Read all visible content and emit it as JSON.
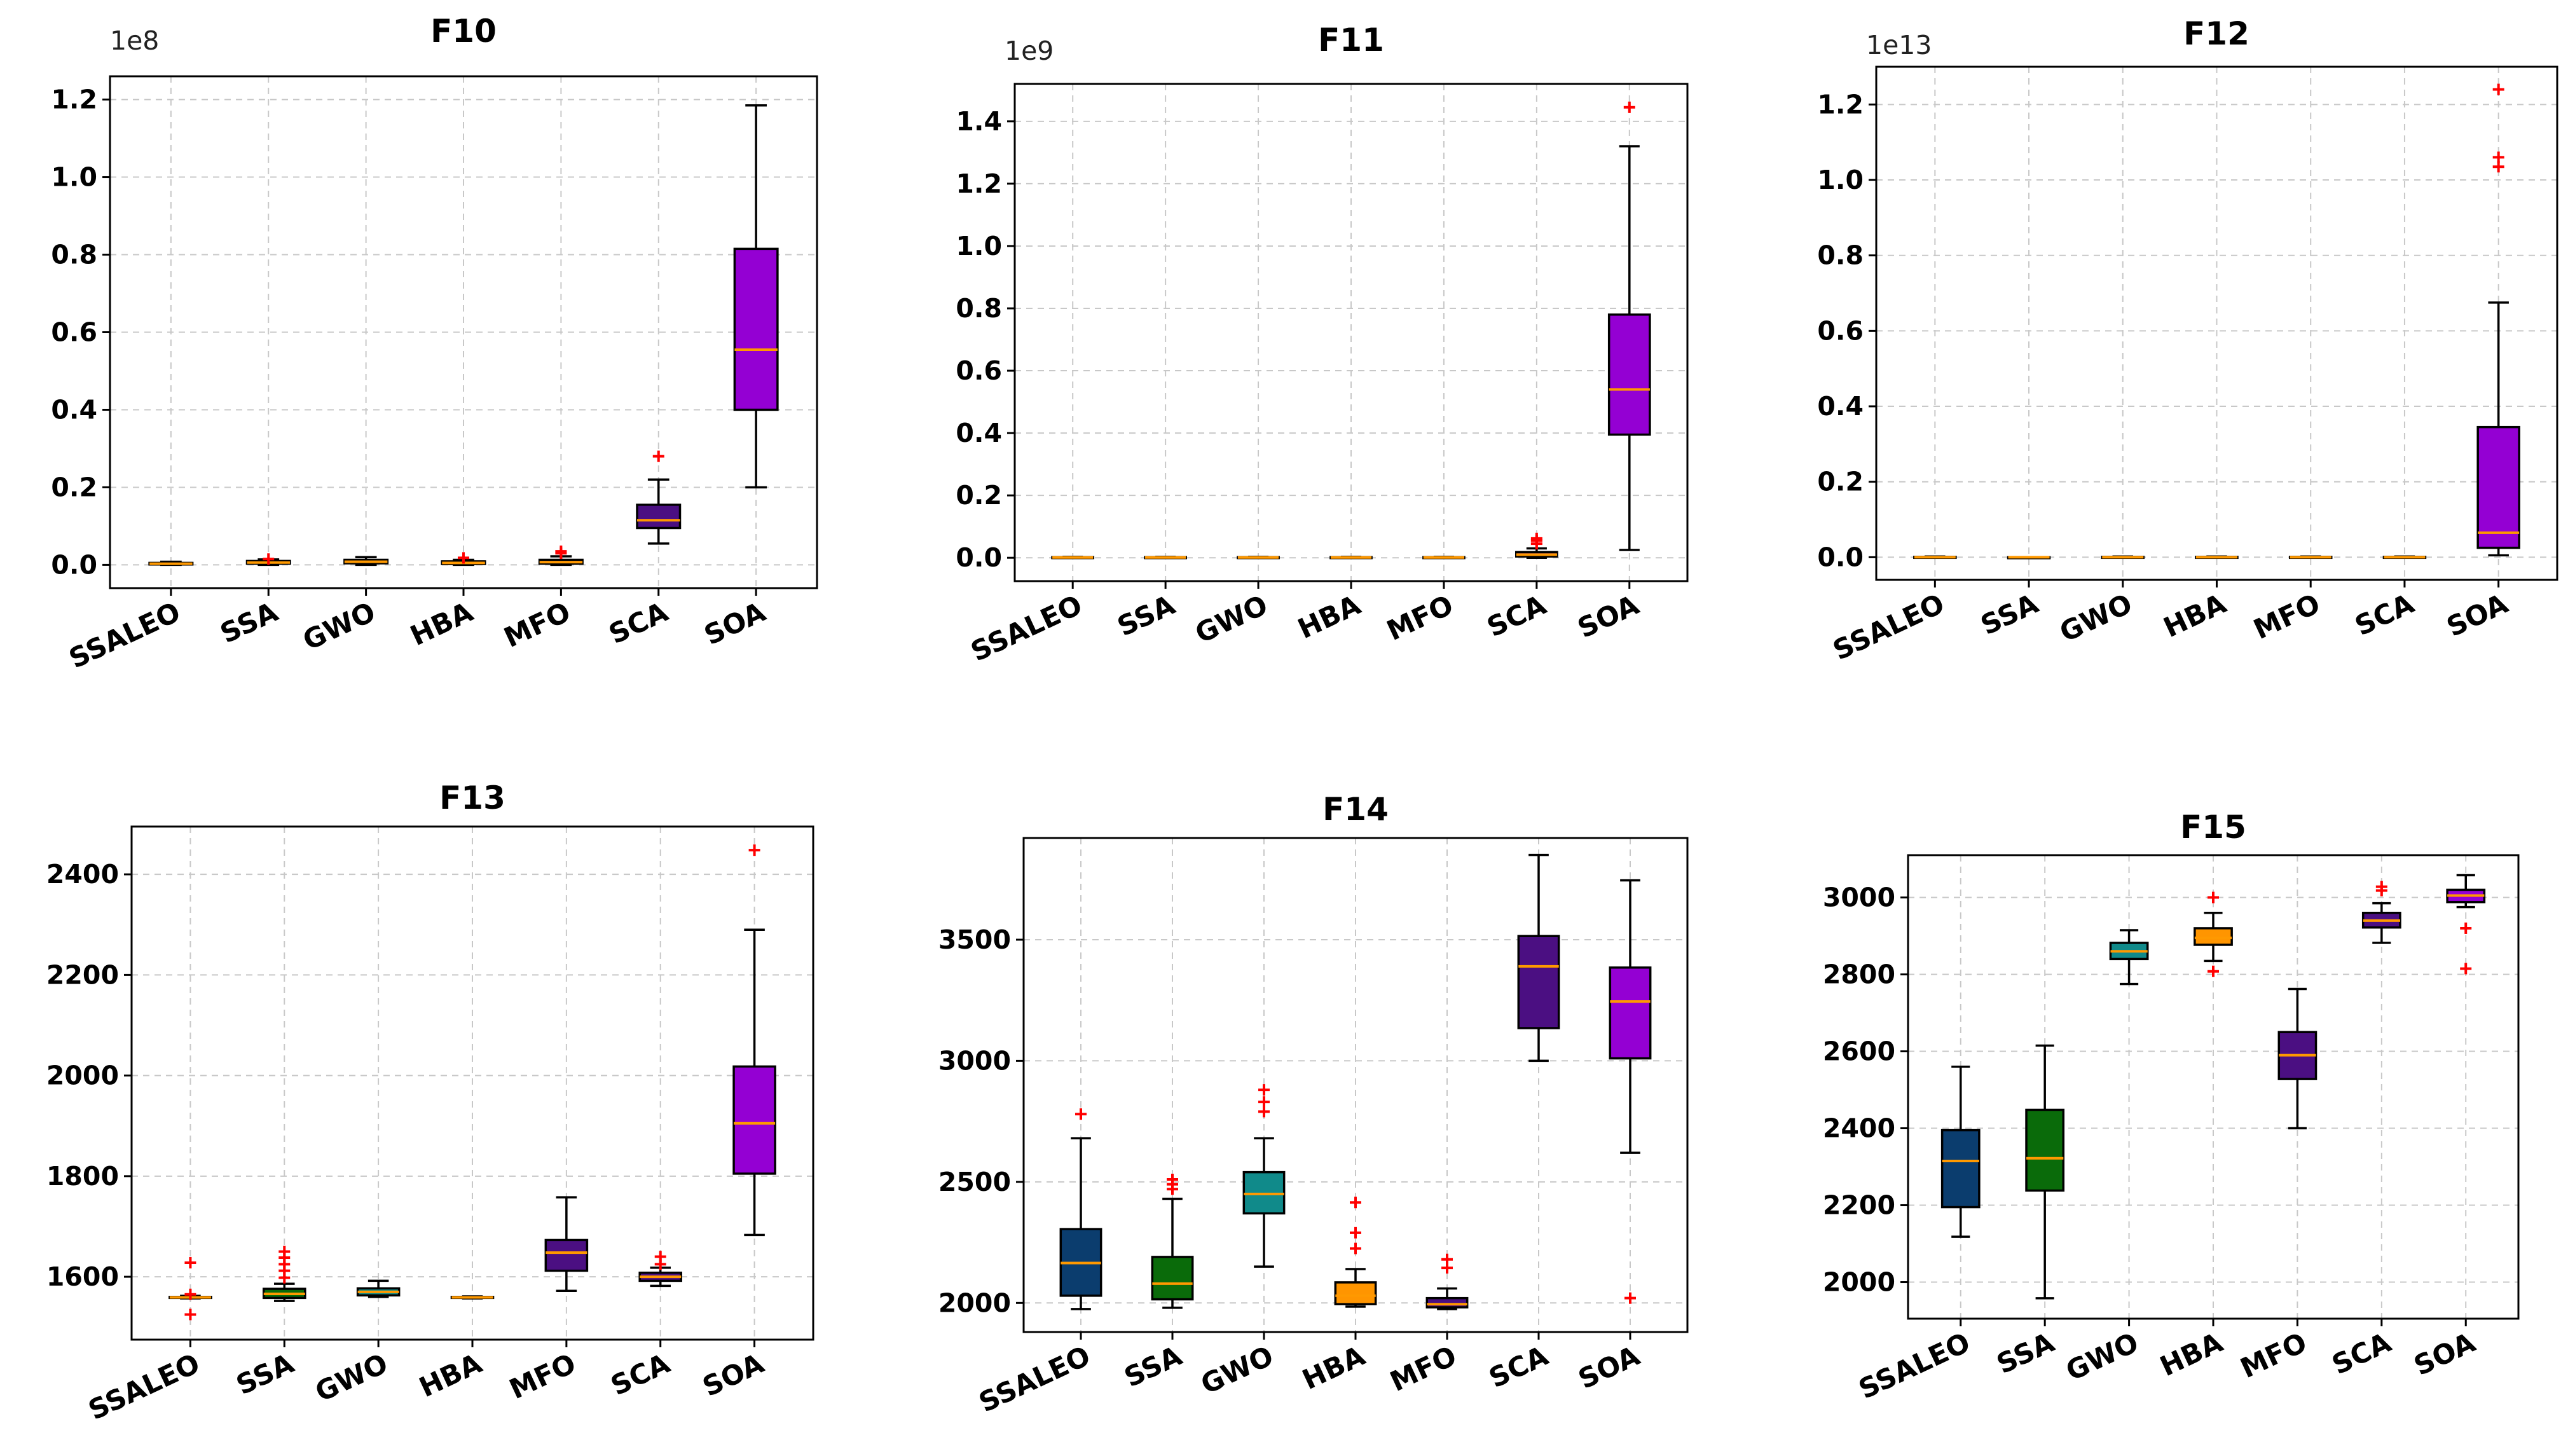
{
  "colors": {
    "SSALEO": "#0b3d6e",
    "SSA": "#0a6b0a",
    "GWO": "#108a8a",
    "HBA": "#ff9500",
    "MFO": "#4b0f82",
    "SCA": "#4b0f82",
    "SOA": "#9400d3",
    "median": "#ff9900",
    "flier": "#ff0000"
  },
  "chart_data": [
    {
      "type": "box",
      "title": "F10",
      "offset_label": "1e8",
      "categories": [
        "SSALEO",
        "SSA",
        "GWO",
        "HBA",
        "MFO",
        "SCA",
        "SOA"
      ],
      "ylim": [
        -0.06,
        1.26
      ],
      "yticks": [
        0.0,
        0.2,
        0.4,
        0.6,
        0.8,
        1.0,
        1.2
      ],
      "ytick_labels": [
        "0.0",
        "0.2",
        "0.4",
        "0.6",
        "0.8",
        "1.0",
        "1.2"
      ],
      "series": [
        {
          "name": "SSALEO",
          "min": 0.0,
          "q1": 0.001,
          "median": 0.003,
          "q3": 0.005,
          "max": 0.008,
          "outliers": []
        },
        {
          "name": "SSA",
          "min": 0.0,
          "q1": 0.003,
          "median": 0.006,
          "q3": 0.01,
          "max": 0.014,
          "outliers": [
            0.015
          ]
        },
        {
          "name": "GWO",
          "min": 0.0,
          "q1": 0.004,
          "median": 0.008,
          "q3": 0.013,
          "max": 0.02,
          "outliers": []
        },
        {
          "name": "HBA",
          "min": 0.0,
          "q1": 0.002,
          "median": 0.005,
          "q3": 0.009,
          "max": 0.013,
          "outliers": [
            0.018
          ]
        },
        {
          "name": "MFO",
          "min": 0.0,
          "q1": 0.003,
          "median": 0.007,
          "q3": 0.013,
          "max": 0.022,
          "outliers": [
            0.03,
            0.035
          ]
        },
        {
          "name": "SCA",
          "min": 0.055,
          "q1": 0.095,
          "median": 0.115,
          "q3": 0.155,
          "max": 0.22,
          "outliers": [
            0.28
          ]
        },
        {
          "name": "SOA",
          "min": 0.2,
          "q1": 0.4,
          "median": 0.555,
          "q3": 0.815,
          "max": 1.185,
          "outliers": []
        }
      ]
    },
    {
      "type": "box",
      "title": "F11",
      "offset_label": "1e9",
      "categories": [
        "SSALEO",
        "SSA",
        "GWO",
        "HBA",
        "MFO",
        "SCA",
        "SOA"
      ],
      "ylim": [
        -0.075,
        1.52
      ],
      "yticks": [
        0.0,
        0.2,
        0.4,
        0.6,
        0.8,
        1.0,
        1.2,
        1.4
      ],
      "ytick_labels": [
        "0.0",
        "0.2",
        "0.4",
        "0.6",
        "0.8",
        "1.0",
        "1.2",
        "1.4"
      ],
      "series": [
        {
          "name": "SSALEO",
          "min": 0.0,
          "q1": 0.0,
          "median": 0.001,
          "q3": 0.002,
          "max": 0.003,
          "outliers": []
        },
        {
          "name": "SSA",
          "min": 0.0,
          "q1": 0.0,
          "median": 0.001,
          "q3": 0.002,
          "max": 0.003,
          "outliers": []
        },
        {
          "name": "GWO",
          "min": 0.0,
          "q1": 0.0,
          "median": 0.001,
          "q3": 0.002,
          "max": 0.003,
          "outliers": []
        },
        {
          "name": "HBA",
          "min": 0.0,
          "q1": 0.0,
          "median": 0.001,
          "q3": 0.002,
          "max": 0.003,
          "outliers": []
        },
        {
          "name": "MFO",
          "min": 0.0,
          "q1": 0.0,
          "median": 0.001,
          "q3": 0.002,
          "max": 0.003,
          "outliers": []
        },
        {
          "name": "SCA",
          "min": 0.0,
          "q1": 0.004,
          "median": 0.01,
          "q3": 0.018,
          "max": 0.03,
          "outliers": [
            0.045,
            0.055,
            0.062
          ]
        },
        {
          "name": "SOA",
          "min": 0.025,
          "q1": 0.395,
          "median": 0.54,
          "q3": 0.78,
          "max": 1.32,
          "outliers": [
            1.445
          ]
        }
      ]
    },
    {
      "type": "box",
      "title": "F12",
      "offset_label": "1e13",
      "categories": [
        "SSALEO",
        "SSA",
        "GWO",
        "HBA",
        "MFO",
        "SCA",
        "SOA"
      ],
      "ylim": [
        -0.06,
        1.3
      ],
      "yticks": [
        0.0,
        0.2,
        0.4,
        0.6,
        0.8,
        1.0,
        1.2
      ],
      "ytick_labels": [
        "0.0",
        "0.2",
        "0.4",
        "0.6",
        "0.8",
        "1.0",
        "1.2"
      ],
      "series": [
        {
          "name": "SSALEO",
          "min": 0.0,
          "q1": 0.0,
          "median": 0.0,
          "q3": 0.001,
          "max": 0.002,
          "outliers": []
        },
        {
          "name": "SSA",
          "min": 0.0,
          "q1": 0.0,
          "median": 0.0,
          "q3": 0.0,
          "max": 0.0,
          "outliers": []
        },
        {
          "name": "GWO",
          "min": 0.0,
          "q1": 0.0,
          "median": 0.0,
          "q3": 0.001,
          "max": 0.002,
          "outliers": []
        },
        {
          "name": "HBA",
          "min": 0.0,
          "q1": 0.0,
          "median": 0.0,
          "q3": 0.001,
          "max": 0.002,
          "outliers": []
        },
        {
          "name": "MFO",
          "min": 0.0,
          "q1": 0.0,
          "median": 0.0,
          "q3": 0.001,
          "max": 0.002,
          "outliers": []
        },
        {
          "name": "SCA",
          "min": 0.0,
          "q1": 0.0,
          "median": 0.0,
          "q3": 0.001,
          "max": 0.002,
          "outliers": []
        },
        {
          "name": "SOA",
          "min": 0.005,
          "q1": 0.025,
          "median": 0.065,
          "q3": 0.345,
          "max": 0.675,
          "outliers": [
            1.035,
            1.06,
            1.24
          ]
        }
      ]
    },
    {
      "type": "box",
      "title": "F13",
      "offset_label": "",
      "categories": [
        "SSALEO",
        "SSA",
        "GWO",
        "HBA",
        "MFO",
        "SCA",
        "SOA"
      ],
      "ylim": [
        1475,
        2495
      ],
      "yticks": [
        1600,
        1800,
        2000,
        2200,
        2400
      ],
      "ytick_labels": [
        "1600",
        "1800",
        "2000",
        "2200",
        "2400"
      ],
      "series": [
        {
          "name": "SSALEO",
          "min": 1557,
          "q1": 1558,
          "median": 1559,
          "q3": 1560,
          "max": 1562,
          "outliers": [
            1525,
            1565,
            1628
          ]
        },
        {
          "name": "SSA",
          "min": 1552,
          "q1": 1558,
          "median": 1566,
          "q3": 1576,
          "max": 1586,
          "outliers": [
            1598,
            1612,
            1625,
            1638,
            1650
          ]
        },
        {
          "name": "GWO",
          "min": 1560,
          "q1": 1563,
          "median": 1570,
          "q3": 1577,
          "max": 1592,
          "outliers": []
        },
        {
          "name": "HBA",
          "min": 1557,
          "q1": 1558,
          "median": 1559,
          "q3": 1560,
          "max": 1561,
          "outliers": []
        },
        {
          "name": "MFO",
          "min": 1572,
          "q1": 1612,
          "median": 1648,
          "q3": 1673,
          "max": 1758,
          "outliers": []
        },
        {
          "name": "SCA",
          "min": 1582,
          "q1": 1592,
          "median": 1600,
          "q3": 1608,
          "max": 1618,
          "outliers": [
            1625,
            1640
          ]
        },
        {
          "name": "SOA",
          "min": 1683,
          "q1": 1805,
          "median": 1905,
          "q3": 2018,
          "max": 2290,
          "outliers": [
            2448
          ]
        }
      ]
    },
    {
      "type": "box",
      "title": "F14",
      "offset_label": "",
      "categories": [
        "SSALEO",
        "SSA",
        "GWO",
        "HBA",
        "MFO",
        "SCA",
        "SOA"
      ],
      "ylim": [
        1880,
        3920
      ],
      "yticks": [
        2000,
        2500,
        3000,
        3500
      ],
      "ytick_labels": [
        "2000",
        "2500",
        "3000",
        "3500"
      ],
      "series": [
        {
          "name": "SSALEO",
          "min": 1975,
          "q1": 2030,
          "median": 2165,
          "q3": 2305,
          "max": 2680,
          "outliers": [
            2780
          ]
        },
        {
          "name": "SSA",
          "min": 1980,
          "q1": 2015,
          "median": 2080,
          "q3": 2190,
          "max": 2430,
          "outliers": [
            2470,
            2490,
            2510
          ]
        },
        {
          "name": "GWO",
          "min": 2150,
          "q1": 2370,
          "median": 2450,
          "q3": 2540,
          "max": 2680,
          "outliers": [
            2790,
            2830,
            2880
          ]
        },
        {
          "name": "HBA",
          "min": 1985,
          "q1": 1995,
          "median": 2030,
          "q3": 2085,
          "max": 2140,
          "outliers": [
            2225,
            2290,
            2415
          ]
        },
        {
          "name": "MFO",
          "min": 1975,
          "q1": 1982,
          "median": 1995,
          "q3": 2020,
          "max": 2060,
          "outliers": [
            2145,
            2180
          ]
        },
        {
          "name": "SCA",
          "min": 3000,
          "q1": 3135,
          "median": 3390,
          "q3": 3515,
          "max": 3850,
          "outliers": []
        },
        {
          "name": "SOA",
          "min": 2620,
          "q1": 3010,
          "median": 3245,
          "q3": 3385,
          "max": 3745,
          "outliers": [
            2020
          ]
        }
      ]
    },
    {
      "type": "box",
      "title": "F15",
      "offset_label": "",
      "categories": [
        "SSALEO",
        "SSA",
        "GWO",
        "HBA",
        "MFO",
        "SCA",
        "SOA"
      ],
      "ylim": [
        1905,
        3110
      ],
      "yticks": [
        2000,
        2200,
        2400,
        2600,
        2800,
        3000
      ],
      "ytick_labels": [
        "2000",
        "2200",
        "2400",
        "2600",
        "2800",
        "3000"
      ],
      "series": [
        {
          "name": "SSALEO",
          "min": 2118,
          "q1": 2195,
          "median": 2315,
          "q3": 2395,
          "max": 2560,
          "outliers": []
        },
        {
          "name": "SSA",
          "min": 1958,
          "q1": 2238,
          "median": 2322,
          "q3": 2448,
          "max": 2615,
          "outliers": []
        },
        {
          "name": "GWO",
          "min": 2775,
          "q1": 2840,
          "median": 2860,
          "q3": 2882,
          "max": 2915,
          "outliers": []
        },
        {
          "name": "HBA",
          "min": 2835,
          "q1": 2877,
          "median": 2895,
          "q3": 2920,
          "max": 2960,
          "outliers": [
            2808,
            3000
          ]
        },
        {
          "name": "MFO",
          "min": 2400,
          "q1": 2528,
          "median": 2590,
          "q3": 2650,
          "max": 2762,
          "outliers": []
        },
        {
          "name": "SCA",
          "min": 2882,
          "q1": 2922,
          "median": 2940,
          "q3": 2960,
          "max": 2985,
          "outliers": [
            3018,
            3028
          ]
        },
        {
          "name": "SOA",
          "min": 2975,
          "q1": 2988,
          "median": 3005,
          "q3": 3020,
          "max": 3058,
          "outliers": [
            2815,
            2920
          ]
        }
      ]
    }
  ]
}
